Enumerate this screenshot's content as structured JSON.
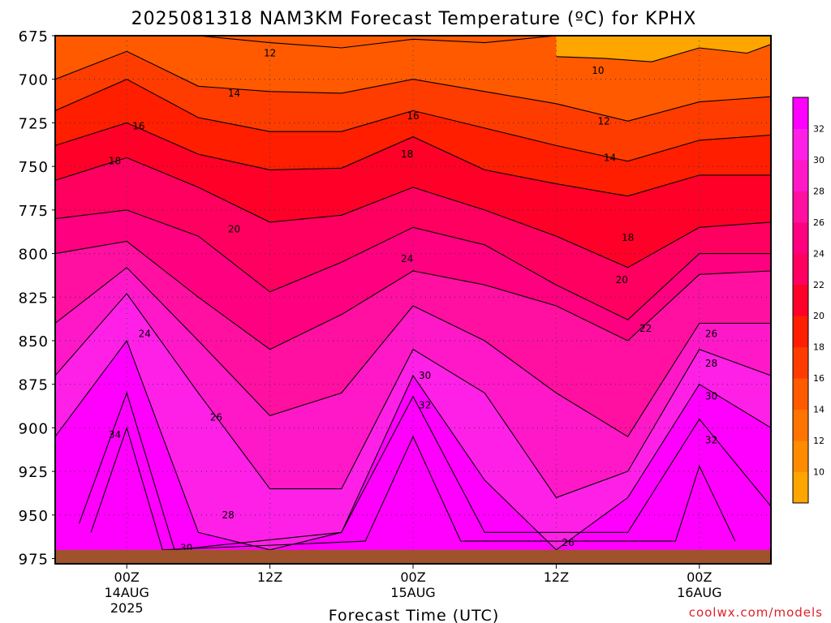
{
  "chart_data": {
    "type": "heatmap",
    "title": "2025081318 NAM3KM Forecast Temperature (ºC) for KPHX",
    "xlabel": "Forecast Time (UTC)",
    "ylabel": "",
    "watermark": "coolwx.com/models",
    "x_unit": "hours after 2025-08-13 18Z",
    "xlim": [
      0,
      60
    ],
    "x_ticks": [
      {
        "x": 6,
        "label": "00Z",
        "sub": "14AUG",
        "sub2": "2025"
      },
      {
        "x": 18,
        "label": "12Z",
        "sub": "",
        "sub2": ""
      },
      {
        "x": 30,
        "label": "00Z",
        "sub": "15AUG",
        "sub2": ""
      },
      {
        "x": 42,
        "label": "12Z",
        "sub": "",
        "sub2": ""
      },
      {
        "x": 54,
        "label": "00Z",
        "sub": "16AUG",
        "sub2": ""
      }
    ],
    "y_unit": "hPa",
    "ylim": [
      978,
      675
    ],
    "y_ticks": [
      675,
      700,
      725,
      750,
      775,
      800,
      825,
      850,
      875,
      900,
      925,
      950,
      975
    ],
    "surface_pressure_hpa": 970,
    "contour_interval": 2,
    "colorbar": {
      "ticks": [
        10,
        12,
        14,
        16,
        18,
        20,
        22,
        24,
        26,
        28,
        30,
        32
      ],
      "colors": [
        "#ffa500",
        "#ff8c00",
        "#ff7300",
        "#ff5a00",
        "#ff3c00",
        "#ff1e00",
        "#ff0028",
        "#ff0060",
        "#ff0080",
        "#ff10a0",
        "#ff18c8",
        "#ff20e8",
        "#ff00ff"
      ]
    },
    "ground_color": "#a0522d",
    "series": [
      {
        "name": "12",
        "x": [
          0,
          6,
          12,
          18,
          24,
          30,
          36,
          42,
          48,
          54,
          60
        ],
        "y": [
          675,
          675,
          675,
          679,
          682,
          677,
          679,
          675,
          675,
          675,
          675
        ]
      },
      {
        "name": "10",
        "x": [
          42,
          46,
          50,
          54,
          58,
          60
        ],
        "y": [
          687,
          688,
          690,
          682,
          685,
          680
        ]
      },
      {
        "name": "14",
        "x": [
          0,
          6,
          12,
          18,
          24,
          30,
          36,
          42,
          48,
          54,
          60
        ],
        "y": [
          700,
          684,
          704,
          707,
          708,
          700,
          707,
          714,
          724,
          713,
          710
        ]
      },
      {
        "name": "16",
        "x": [
          0,
          6,
          12,
          18,
          24,
          30,
          36,
          42,
          48,
          54,
          60
        ],
        "y": [
          718,
          700,
          722,
          730,
          730,
          718,
          728,
          738,
          747,
          735,
          732
        ]
      },
      {
        "name": "18",
        "x": [
          0,
          6,
          12,
          18,
          24,
          30,
          36,
          42,
          48,
          54,
          60
        ],
        "y": [
          738,
          725,
          743,
          752,
          751,
          733,
          752,
          760,
          767,
          755,
          755
        ]
      },
      {
        "name": "20",
        "x": [
          0,
          6,
          12,
          18,
          24,
          30,
          36,
          42,
          48,
          54,
          60
        ],
        "y": [
          758,
          745,
          762,
          782,
          778,
          762,
          775,
          790,
          808,
          785,
          782
        ]
      },
      {
        "name": "22",
        "x": [
          0,
          6,
          12,
          18,
          24,
          30,
          36,
          42,
          48,
          54,
          60
        ],
        "y": [
          780,
          775,
          790,
          822,
          805,
          785,
          795,
          818,
          838,
          800,
          800
        ]
      },
      {
        "name": "24",
        "x": [
          0,
          6,
          12,
          18,
          24,
          30,
          36,
          42,
          48,
          54,
          60
        ],
        "y": [
          800,
          793,
          825,
          855,
          835,
          810,
          818,
          830,
          850,
          812,
          810
        ]
      },
      {
        "name": "26",
        "x": [
          0,
          6,
          12,
          18,
          24,
          30,
          36,
          42,
          48,
          54,
          60
        ],
        "y": [
          840,
          808,
          850,
          893,
          880,
          830,
          850,
          880,
          905,
          840,
          840
        ]
      },
      {
        "name": "28",
        "x": [
          0,
          6,
          12,
          18,
          24,
          30,
          36,
          42,
          48,
          54,
          60
        ],
        "y": [
          870,
          823,
          880,
          935,
          935,
          855,
          880,
          940,
          925,
          855,
          870
        ]
      },
      {
        "name": "30",
        "x": [
          0,
          6,
          12,
          18,
          24,
          30,
          36,
          42,
          48,
          54,
          60
        ],
        "y": [
          905,
          850,
          960,
          970,
          960,
          870,
          930,
          970,
          940,
          875,
          900
        ]
      },
      {
        "name": "32",
        "x": [
          2,
          6,
          10,
          24,
          30,
          36,
          48,
          54,
          60
        ],
        "y": [
          955,
          880,
          970,
          960,
          882,
          960,
          960,
          895,
          945
        ]
      },
      {
        "name": "34",
        "x": [
          3,
          6,
          9,
          26,
          30,
          34,
          52,
          54,
          57
        ],
        "y": [
          960,
          900,
          970,
          965,
          905,
          965,
          965,
          922,
          965
        ]
      }
    ],
    "contour_labels": [
      {
        "value": "12",
        "x": 18,
        "y": 685
      },
      {
        "value": "10",
        "x": 45.5,
        "y": 695
      },
      {
        "value": "14",
        "x": 15,
        "y": 708
      },
      {
        "value": "12",
        "x": 46,
        "y": 724
      },
      {
        "value": "16",
        "x": 7,
        "y": 727
      },
      {
        "value": "16",
        "x": 30,
        "y": 721
      },
      {
        "value": "14",
        "x": 46.5,
        "y": 745
      },
      {
        "value": "18",
        "x": 5,
        "y": 747
      },
      {
        "value": "18",
        "x": 29.5,
        "y": 743
      },
      {
        "value": "20",
        "x": 15,
        "y": 786
      },
      {
        "value": "18",
        "x": 48,
        "y": 791
      },
      {
        "value": "24",
        "x": 29.5,
        "y": 803
      },
      {
        "value": "20",
        "x": 47.5,
        "y": 815
      },
      {
        "value": "24",
        "x": 7.5,
        "y": 846
      },
      {
        "value": "22",
        "x": 49.5,
        "y": 843
      },
      {
        "value": "26",
        "x": 55,
        "y": 846
      },
      {
        "value": "28",
        "x": 55,
        "y": 863
      },
      {
        "value": "30",
        "x": 31,
        "y": 870
      },
      {
        "value": "26",
        "x": 13.5,
        "y": 894
      },
      {
        "value": "32",
        "x": 31,
        "y": 887
      },
      {
        "value": "30",
        "x": 55,
        "y": 882
      },
      {
        "value": "34",
        "x": 5,
        "y": 904
      },
      {
        "value": "32",
        "x": 55,
        "y": 907
      },
      {
        "value": "28",
        "x": 14.5,
        "y": 950
      },
      {
        "value": "26",
        "x": 43,
        "y": 966
      },
      {
        "value": "30",
        "x": 11,
        "y": 969
      }
    ]
  }
}
